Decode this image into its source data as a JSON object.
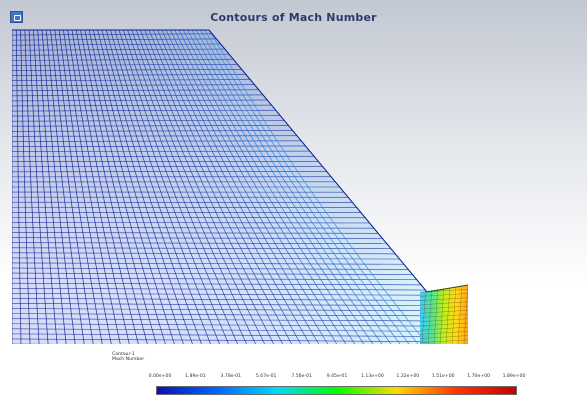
{
  "header": {
    "title": "Contours of Mach Number",
    "logo_icon": "app-logo-icon"
  },
  "legend": {
    "contour_name": "Contour-1",
    "variable": "Mach Number"
  },
  "colorbar": {
    "labels": [
      "0.00e+00",
      "1.89e-01",
      "3.78e-01",
      "5.67e-01",
      "7.56e-01",
      "9.45e-01",
      "1.13e+00",
      "1.32e+00",
      "1.51e+00",
      "1.70e+00",
      "1.89e+00"
    ],
    "colors": [
      "#0a10b4",
      "#0066ff",
      "#00d8ff",
      "#00ff00",
      "#ffd800",
      "#ff3300",
      "#c80000"
    ]
  },
  "colors": {
    "mesh_low": "#1b3fd6",
    "mesh_dark": "#0a1c8f",
    "title": "#2f3a6b"
  }
}
